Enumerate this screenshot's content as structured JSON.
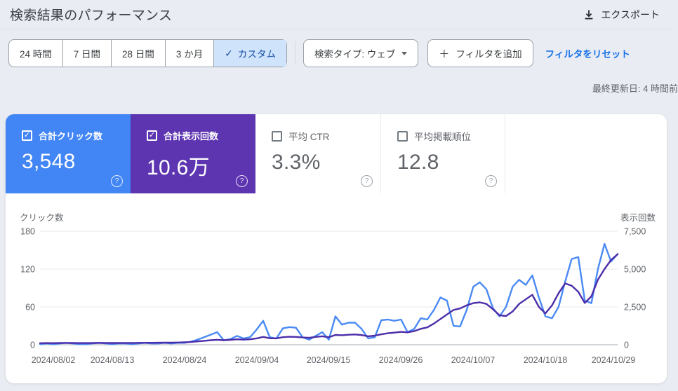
{
  "header": {
    "title": "検索結果のパフォーマンス",
    "export_label": "エクスポート"
  },
  "toolbar": {
    "date_ranges": [
      {
        "label": "24 時間",
        "selected": false
      },
      {
        "label": "7 日間",
        "selected": false
      },
      {
        "label": "28 日間",
        "selected": false
      },
      {
        "label": "3 か月",
        "selected": false
      },
      {
        "label": "カスタム",
        "selected": true
      }
    ],
    "search_type": "検索タイプ: ウェブ",
    "add_filter": "フィルタを追加",
    "reset_filters": "フィルタをリセット",
    "last_updated": "最終更新日: 4 時間前"
  },
  "metric_cards": [
    {
      "label": "合計クリック数",
      "value": "3,548",
      "checked": true,
      "color": "#4285f4"
    },
    {
      "label": "合計表示回数",
      "value": "10.6万",
      "checked": true,
      "color": "#5e35b1"
    },
    {
      "label": "平均 CTR",
      "value": "3.3%",
      "checked": false,
      "color": null
    },
    {
      "label": "平均掲載順位",
      "value": "12.8",
      "checked": false,
      "color": null
    }
  ],
  "icons": {
    "check": "✓",
    "plus": "＋",
    "question": "?"
  },
  "chart_data": {
    "type": "line",
    "grid": true,
    "legend_position": "none",
    "left_axis": {
      "title": "クリック数",
      "range": [
        0,
        180
      ],
      "ticks": [
        "0",
        "60",
        "120",
        "180"
      ]
    },
    "right_axis": {
      "title": "表示回数",
      "range": [
        0,
        7500
      ],
      "ticks": [
        "0",
        "2,500",
        "5,000",
        "7,500"
      ]
    },
    "x_tick_labels": [
      "2024/08/02",
      "2024/08/13",
      "2024/08/24",
      "2024/09/04",
      "2024/09/15",
      "2024/09/26",
      "2024/10/07",
      "2024/10/18",
      "2024/10/29"
    ],
    "series": [
      {
        "name": "クリック数",
        "axis": "left",
        "color": "#4a8af4",
        "values": [
          1,
          2,
          1,
          2,
          3,
          2,
          1,
          1,
          2,
          3,
          2,
          1,
          2,
          2,
          1,
          2,
          3,
          2,
          2,
          3,
          2,
          3,
          3,
          5,
          8,
          12,
          16,
          20,
          7,
          9,
          14,
          10,
          12,
          24,
          38,
          12,
          10,
          26,
          28,
          27,
          12,
          8,
          14,
          20,
          8,
          45,
          32,
          35,
          35,
          25,
          10,
          12,
          39,
          40,
          38,
          40,
          20,
          25,
          42,
          40,
          55,
          75,
          70,
          30,
          29,
          55,
          92,
          99,
          88,
          58,
          45,
          60,
          92,
          103,
          95,
          110,
          75,
          45,
          42,
          60,
          100,
          136,
          139,
          70,
          66,
          120,
          160,
          132,
          144
        ]
      },
      {
        "name": "表示回数",
        "axis": "right",
        "color": "#4c2da9",
        "values": [
          100,
          110,
          105,
          115,
          120,
          118,
          112,
          110,
          115,
          125,
          120,
          115,
          118,
          122,
          120,
          125,
          130,
          128,
          132,
          138,
          140,
          150,
          160,
          180,
          220,
          260,
          300,
          330,
          300,
          320,
          360,
          340,
          360,
          420,
          520,
          430,
          420,
          500,
          530,
          520,
          480,
          460,
          520,
          560,
          500,
          650,
          630,
          660,
          680,
          640,
          560,
          600,
          690,
          760,
          800,
          850,
          820,
          900,
          1050,
          1150,
          1400,
          1700,
          2000,
          2300,
          2400,
          2600,
          2750,
          2800,
          2700,
          2350,
          1950,
          1900,
          2200,
          2700,
          3000,
          3300,
          2500,
          2070,
          2600,
          3400,
          4050,
          3900,
          3500,
          2760,
          3200,
          4300,
          5000,
          5600,
          5980
        ]
      }
    ]
  }
}
